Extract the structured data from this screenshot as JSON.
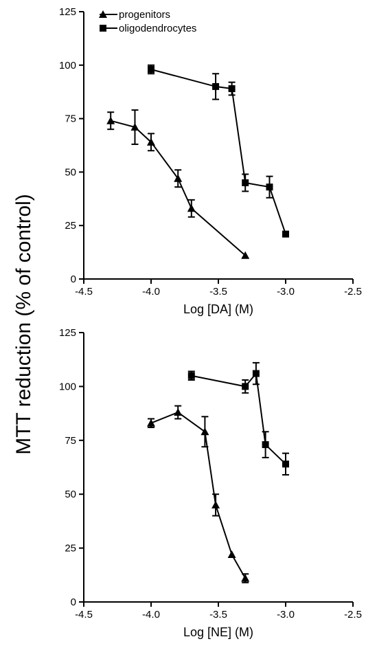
{
  "figure": {
    "shared_ylabel": "MTT reduction (% of control)"
  },
  "chart_data": [
    {
      "type": "line",
      "xlabel": "Log [DA] (M)",
      "ylabel": "MTT reduction (% of control)",
      "xlim": [
        -4.5,
        -2.5
      ],
      "ylim": [
        0,
        125
      ],
      "xticks": [
        -4.5,
        -4.0,
        -3.5,
        -3.0,
        -2.5
      ],
      "xtick_labels": [
        "-4.5",
        "-4.0",
        "-3.5",
        "-3.0",
        "-2.5"
      ],
      "yticks": [
        0,
        25,
        50,
        75,
        100,
        125
      ],
      "ytick_labels": [
        "0",
        "25",
        "50",
        "75",
        "100",
        "125"
      ],
      "grid": false,
      "legend": "top-left",
      "series": [
        {
          "name": "progenitors",
          "marker": "triangle",
          "x": [
            -4.3,
            -4.12,
            -4.0,
            -3.8,
            -3.7,
            -3.3
          ],
          "y": [
            74,
            71,
            64,
            47,
            33,
            11
          ],
          "err": [
            4,
            8,
            4,
            4,
            4,
            0
          ]
        },
        {
          "name": "oligodendrocytes",
          "marker": "square",
          "x": [
            -4.0,
            -3.52,
            -3.4,
            -3.3,
            -3.12,
            -3.0
          ],
          "y": [
            98,
            90,
            89,
            45,
            43,
            21
          ],
          "err": [
            2,
            6,
            3,
            4,
            5,
            0
          ]
        }
      ]
    },
    {
      "type": "line",
      "xlabel": "Log [NE] (M)",
      "ylabel": "MTT reduction (% of control)",
      "xlim": [
        -4.5,
        -2.5
      ],
      "ylim": [
        0,
        125
      ],
      "xticks": [
        -4.5,
        -4.0,
        -3.5,
        -3.0,
        -2.5
      ],
      "xtick_labels": [
        "-4.5",
        "-4.0",
        "-3.5",
        "-3.0",
        "-2.5"
      ],
      "yticks": [
        0,
        25,
        50,
        75,
        100,
        125
      ],
      "ytick_labels": [
        "0",
        "25",
        "50",
        "75",
        "100",
        "125"
      ],
      "grid": false,
      "series": [
        {
          "name": "progenitors",
          "marker": "triangle",
          "x": [
            -4.0,
            -3.8,
            -3.6,
            -3.52,
            -3.4,
            -3.3
          ],
          "y": [
            83,
            88,
            79,
            45,
            22,
            11
          ],
          "err": [
            2,
            3,
            7,
            5,
            0,
            2
          ]
        },
        {
          "name": "oligodendrocytes",
          "marker": "square",
          "x": [
            -3.7,
            -3.3,
            -3.22,
            -3.15,
            -3.0
          ],
          "y": [
            105,
            100,
            106,
            73,
            64
          ],
          "err": [
            2,
            3,
            5,
            6,
            5
          ]
        }
      ]
    }
  ]
}
